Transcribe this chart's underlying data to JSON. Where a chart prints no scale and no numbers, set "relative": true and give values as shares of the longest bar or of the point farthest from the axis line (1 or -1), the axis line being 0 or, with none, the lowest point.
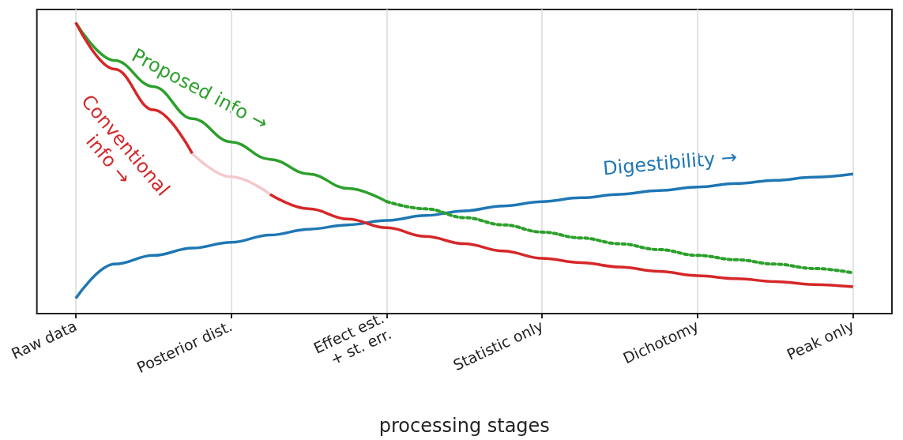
{
  "chart_data": {
    "type": "line",
    "relative": true,
    "xlabel": "processing stages",
    "categories": [
      null,
      "Raw data",
      null,
      null,
      null,
      "Posterior dist.",
      null,
      null,
      null,
      "Effect est.\n+ st. err.",
      null,
      null,
      null,
      "Statistic only",
      null,
      null,
      null,
      "Dichotomy",
      null,
      null,
      null,
      "Peak only",
      null
    ],
    "grid": "x",
    "marker": "none",
    "series": [
      {
        "color": "#2ca02c",
        "line_style": "solid",
        "values": [
          null,
          1,
          0.87,
          0.78,
          0.67,
          0.59,
          0.53,
          0.48,
          0.43,
          0.385,
          null,
          null,
          null,
          null,
          null,
          null,
          null,
          null,
          null,
          null,
          null,
          null,
          null
        ]
      },
      {
        "color": "#d62728",
        "line_style": "solid",
        "values": [
          null,
          1,
          0.84,
          0.7,
          0.55,
          null,
          null,
          null,
          null,
          null,
          null,
          null,
          null,
          null,
          null,
          null,
          null,
          null,
          null,
          null,
          null,
          null,
          null
        ]
      },
      {
        "color": "#1f77b4",
        "line_style": "solid",
        "values": [
          null,
          0.052,
          0.17,
          0.2,
          0.225,
          0.245,
          0.27,
          0.29,
          0.305,
          0.32,
          0.337,
          0.353,
          0.37,
          0.385,
          0.398,
          0.41,
          0.423,
          0.435,
          0.447,
          0.458,
          0.469,
          0.48,
          null
        ]
      },
      {
        "color": "#2ca02c",
        "line_style": "dotted",
        "values": [
          null,
          null,
          null,
          null,
          null,
          null,
          null,
          null,
          null,
          0.385,
          0.36,
          0.33,
          0.305,
          0.28,
          0.26,
          0.24,
          0.22,
          0.2,
          0.185,
          0.17,
          0.155,
          0.14,
          null
        ]
      },
      {
        "color": "#f5c8cc",
        "line_style": "solid",
        "values": [
          null,
          null,
          null,
          null,
          0.55,
          0.47,
          0.41,
          null,
          null,
          null,
          null,
          null,
          null,
          null,
          null,
          null,
          null,
          null,
          null,
          null,
          null,
          null,
          null
        ]
      },
      {
        "color": "#d62728",
        "line_style": "solid",
        "values": [
          null,
          null,
          null,
          null,
          null,
          null,
          0.41,
          0.36,
          0.325,
          0.295,
          0.265,
          0.24,
          0.215,
          0.19,
          0.175,
          0.16,
          0.145,
          0.13,
          0.12,
          0.11,
          0.1,
          0.092,
          null
        ]
      }
    ],
    "annotations": [
      "Proposed info →",
      "Conventional\ninfo →",
      "Digestibility →"
    ]
  }
}
